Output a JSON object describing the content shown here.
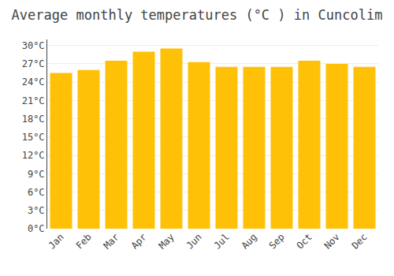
{
  "chart_data": {
    "type": "bar",
    "title": "Average monthly temperatures (°C ) in Cuncolim",
    "categories": [
      "Jan",
      "Feb",
      "Mar",
      "Apr",
      "May",
      "Jun",
      "Jul",
      "Aug",
      "Sep",
      "Oct",
      "Nov",
      "Dec"
    ],
    "values": [
      25.5,
      26.0,
      27.5,
      29.0,
      29.5,
      27.3,
      26.5,
      26.5,
      26.5,
      27.5,
      27.0,
      26.5
    ],
    "color": "#FFC107",
    "ylim": [
      0,
      31
    ],
    "yticks": [
      {
        "value": 0,
        "label": "0°C"
      },
      {
        "value": 3,
        "label": "3°C"
      },
      {
        "value": 6,
        "label": "6°C"
      },
      {
        "value": 9,
        "label": "9°C"
      },
      {
        "value": 12,
        "label": "12°C"
      },
      {
        "value": 15,
        "label": "15°C"
      },
      {
        "value": 18,
        "label": "18°C"
      },
      {
        "value": 21,
        "label": "21°C"
      },
      {
        "value": 24,
        "label": "24°C"
      },
      {
        "value": 27,
        "label": "27°C"
      },
      {
        "value": 30,
        "label": "30°C"
      }
    ],
    "grid": true
  }
}
